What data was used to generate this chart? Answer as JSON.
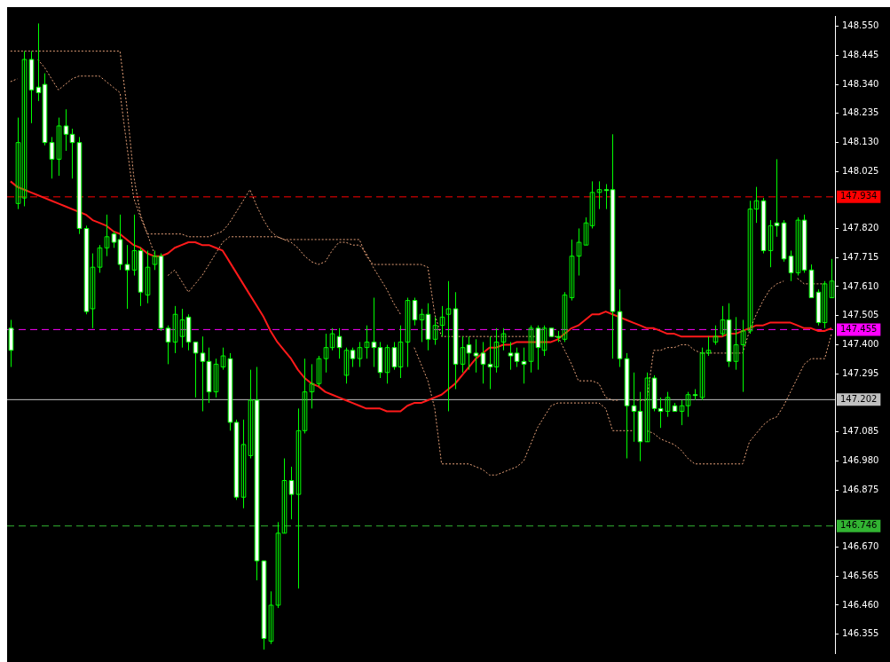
{
  "chart_data": {
    "type": "candlestick",
    "color": "#00ff00",
    "colors": [
      "#ffffff",
      "#00ff00",
      "#00ff00",
      "#ffffff",
      "#ffffff",
      "#ffffff",
      "#ffffff",
      "#00ff00",
      "#ffffff",
      "#ffffff",
      "#ffffff",
      "#ffffff",
      "#00ff00",
      "#00ff00",
      "#00ff00",
      "#ffffff",
      "#ffffff",
      "#ffffff",
      "#00ff00",
      "#ffffff",
      "#00ff00",
      "#00ff00",
      "#ffffff",
      "#ffffff",
      "#00ff00",
      "#00ff00",
      "#ffffff",
      "#ffffff",
      "#ffffff",
      "#ffffff",
      "#00ff00",
      "#00ff00",
      "#ffffff",
      "#ffffff",
      "#00ff00",
      "#00ff00",
      "#ffffff",
      "#ffffff",
      "#00ff00",
      "#00ff00",
      "#00ff00",
      "#ffffff",
      "#00ff00",
      "#00ff00",
      "#00ff00",
      "#00ff00",
      "#00ff00",
      "#00ff00",
      "#ffffff",
      "#00ff00",
      "#ffffff",
      "#00ff00",
      "#00ff00",
      "#ffffff",
      "#ffffff",
      "#00ff00",
      "#ffffff",
      "#00ff00",
      "#00ff00",
      "#ffffff",
      "#00ff00",
      "#ffffff",
      "#00ff00",
      "#00ff00",
      "#00ff00",
      "#ffffff",
      "#00ff00",
      "#ffffff",
      "#ffffff",
      "#ffffff",
      "#ffffff",
      "#00ff00",
      "#00ff00",
      "#ffffff",
      "#ffffff",
      "#ffffff",
      "#00ff00",
      "#ffffff",
      "#00ff00",
      "#ffffff",
      "#ffffff",
      "#00ff00",
      "#00ff00",
      "#00ff00",
      "#00ff00",
      "#00ff00",
      "#00ff00",
      "#ffffff",
      "#ffffff",
      "#ffffff",
      "#ffffff",
      "#ffffff",
      "#ffffff",
      "#00ff00",
      "#ffffff",
      "#ffffff",
      "#00ff00",
      "#ffffff",
      "#00ff00",
      "#00ff00",
      "#ffffff",
      "#00ff00",
      "#00ff00",
      "#00ff00",
      "#00ff00",
      "#ffffff",
      "#00ff00",
      "#00ff00",
      "#00ff00",
      "#00ff00",
      "#ffffff",
      "#00ff00",
      "#ffffff",
      "#ffffff",
      "#ffffff",
      "#00ff00",
      "#ffffff",
      "#ffffff",
      "#ffffff",
      "#00ff00",
      "#00ff00"
    ],
    "categories": [
      null,
      null,
      null,
      null,
      null,
      null,
      null,
      null,
      null,
      null,
      null,
      null,
      null,
      null,
      null,
      null,
      null,
      null,
      null,
      null,
      null,
      null,
      null,
      null,
      null,
      null,
      null,
      null,
      null,
      null,
      null,
      null,
      null,
      null,
      null,
      null,
      null,
      null,
      null,
      null,
      null,
      null,
      null,
      null,
      null,
      null,
      null,
      null,
      null,
      null,
      null,
      null,
      null,
      null,
      null,
      null,
      null,
      null,
      null,
      null,
      null,
      null,
      null,
      null,
      null,
      null,
      null,
      null,
      null,
      null,
      null,
      null,
      null,
      null,
      null,
      null,
      null,
      null,
      null,
      null,
      null,
      null,
      null,
      null,
      null,
      null,
      null,
      null,
      null,
      null,
      null,
      null,
      null,
      null,
      null,
      null,
      null,
      null,
      null,
      null,
      null,
      null,
      null,
      null,
      null,
      null,
      null,
      null,
      null,
      null,
      null,
      null,
      null,
      null,
      null,
      null,
      null,
      null,
      null,
      null,
      null
    ],
    "ohlc": [
      [
        147.46,
        147.49,
        147.32,
        147.38
      ],
      [
        147.91,
        148.22,
        147.89,
        148.13
      ],
      [
        147.93,
        148.46,
        147.9,
        148.43
      ],
      [
        148.43,
        148.46,
        148.2,
        148.32
      ],
      [
        148.33,
        148.56,
        148.28,
        148.31
      ],
      [
        148.34,
        148.38,
        148.12,
        148.13
      ],
      [
        148.13,
        148.15,
        148.0,
        148.07
      ],
      [
        148.07,
        148.22,
        148.01,
        148.19
      ],
      [
        148.19,
        148.25,
        148.1,
        148.16
      ],
      [
        148.16,
        148.18,
        148.0,
        148.13
      ],
      [
        148.13,
        148.15,
        147.8,
        147.82
      ],
      [
        147.82,
        147.83,
        147.51,
        147.52
      ],
      [
        147.53,
        147.73,
        147.46,
        147.68
      ],
      [
        147.68,
        147.76,
        147.66,
        147.75
      ],
      [
        147.75,
        147.87,
        147.72,
        147.79
      ],
      [
        147.8,
        147.81,
        147.75,
        147.77
      ],
      [
        147.78,
        147.87,
        147.67,
        147.69
      ],
      [
        147.69,
        147.76,
        147.53,
        147.67
      ],
      [
        147.67,
        147.87,
        147.65,
        147.74
      ],
      [
        147.74,
        147.75,
        147.54,
        147.59
      ],
      [
        147.58,
        147.74,
        147.55,
        147.68
      ],
      [
        147.69,
        147.74,
        147.67,
        147.72
      ],
      [
        147.72,
        147.73,
        147.45,
        147.46
      ],
      [
        147.46,
        147.47,
        147.33,
        147.41
      ],
      [
        147.41,
        147.54,
        147.37,
        147.51
      ],
      [
        147.43,
        147.53,
        147.39,
        147.49
      ],
      [
        147.5,
        147.51,
        147.38,
        147.41
      ],
      [
        147.41,
        147.41,
        147.21,
        147.37
      ],
      [
        147.37,
        147.43,
        147.16,
        147.34
      ],
      [
        147.34,
        147.39,
        147.19,
        147.23
      ],
      [
        147.23,
        147.35,
        147.21,
        147.33
      ],
      [
        147.32,
        147.39,
        147.31,
        147.36
      ],
      [
        147.35,
        147.37,
        147.09,
        147.12
      ],
      [
        147.12,
        147.13,
        146.84,
        146.85
      ],
      [
        146.85,
        147.13,
        146.81,
        147.04
      ],
      [
        147.0,
        147.31,
        146.99,
        147.2
      ],
      [
        147.2,
        147.32,
        146.55,
        146.62
      ],
      [
        146.62,
        146.62,
        146.3,
        146.34
      ],
      [
        146.33,
        146.51,
        146.32,
        146.46
      ],
      [
        146.46,
        146.76,
        146.45,
        146.72
      ],
      [
        146.72,
        146.99,
        146.72,
        146.91
      ],
      [
        146.91,
        146.96,
        146.77,
        146.86
      ],
      [
        146.86,
        147.17,
        146.52,
        147.09
      ],
      [
        147.09,
        147.35,
        147.08,
        147.23
      ],
      [
        147.23,
        147.33,
        147.17,
        147.26
      ],
      [
        147.26,
        147.36,
        147.25,
        147.35
      ],
      [
        147.35,
        147.44,
        147.3,
        147.39
      ],
      [
        147.39,
        147.46,
        147.38,
        147.44
      ],
      [
        147.43,
        147.46,
        147.35,
        147.39
      ],
      [
        147.29,
        147.39,
        147.26,
        147.38
      ],
      [
        147.38,
        147.39,
        147.32,
        147.35
      ],
      [
        147.35,
        147.41,
        147.32,
        147.39
      ],
      [
        147.39,
        147.47,
        147.35,
        147.41
      ],
      [
        147.41,
        147.57,
        147.32,
        147.39
      ],
      [
        147.39,
        147.41,
        147.28,
        147.3
      ],
      [
        147.3,
        147.4,
        147.26,
        147.39
      ],
      [
        147.39,
        147.41,
        147.31,
        147.32
      ],
      [
        147.32,
        147.47,
        147.28,
        147.41
      ],
      [
        147.41,
        147.57,
        147.32,
        147.56
      ],
      [
        147.56,
        147.57,
        147.47,
        147.49
      ],
      [
        147.49,
        147.53,
        147.41,
        147.51
      ],
      [
        147.51,
        147.55,
        147.38,
        147.42
      ],
      [
        147.42,
        147.5,
        147.4,
        147.47
      ],
      [
        147.47,
        147.54,
        147.43,
        147.5
      ],
      [
        147.51,
        147.63,
        147.16,
        147.53
      ],
      [
        147.53,
        147.59,
        147.24,
        147.33
      ],
      [
        147.33,
        147.43,
        147.3,
        147.39
      ],
      [
        147.4,
        147.43,
        147.31,
        147.37
      ],
      [
        147.37,
        147.42,
        147.3,
        147.36
      ],
      [
        147.37,
        147.41,
        147.26,
        147.33
      ],
      [
        147.33,
        147.43,
        147.24,
        147.32
      ],
      [
        147.32,
        147.46,
        147.3,
        147.41
      ],
      [
        147.41,
        147.46,
        147.38,
        147.44
      ],
      [
        147.37,
        147.41,
        147.31,
        147.36
      ],
      [
        147.37,
        147.39,
        147.32,
        147.34
      ],
      [
        147.34,
        147.39,
        147.26,
        147.33
      ],
      [
        147.34,
        147.47,
        147.3,
        147.46
      ],
      [
        147.46,
        147.47,
        147.31,
        147.39
      ],
      [
        147.38,
        147.47,
        147.36,
        147.46
      ],
      [
        147.46,
        147.46,
        147.43,
        147.43
      ],
      [
        147.43,
        147.45,
        147.41,
        147.43
      ],
      [
        147.42,
        147.59,
        147.41,
        147.58
      ],
      [
        147.57,
        147.78,
        147.56,
        147.72
      ],
      [
        147.72,
        147.82,
        147.65,
        147.77
      ],
      [
        147.76,
        147.86,
        147.76,
        147.84
      ],
      [
        147.83,
        147.99,
        147.82,
        147.95
      ],
      [
        147.95,
        147.99,
        147.89,
        147.96
      ],
      [
        147.96,
        147.98,
        147.89,
        147.96
      ],
      [
        147.96,
        148.16,
        147.35,
        147.52
      ],
      [
        147.52,
        147.6,
        147.32,
        147.35
      ],
      [
        147.35,
        147.37,
        146.99,
        147.18
      ],
      [
        147.18,
        147.3,
        147.05,
        147.16
      ],
      [
        147.16,
        147.23,
        146.98,
        147.05
      ],
      [
        147.05,
        147.3,
        147.05,
        147.28
      ],
      [
        147.28,
        147.29,
        147.16,
        147.17
      ],
      [
        147.17,
        147.21,
        147.1,
        147.16
      ],
      [
        147.16,
        147.23,
        147.14,
        147.21
      ],
      [
        147.18,
        147.19,
        147.16,
        147.16
      ],
      [
        147.16,
        147.2,
        147.11,
        147.18
      ],
      [
        147.18,
        147.23,
        147.14,
        147.22
      ],
      [
        147.22,
        147.24,
        147.2,
        147.22
      ],
      [
        147.21,
        147.39,
        147.2,
        147.37
      ],
      [
        147.37,
        147.43,
        147.36,
        147.38
      ],
      [
        147.41,
        147.47,
        147.4,
        147.43
      ],
      [
        147.44,
        147.54,
        147.43,
        147.49
      ],
      [
        147.49,
        147.55,
        147.32,
        147.34
      ],
      [
        147.34,
        147.5,
        147.31,
        147.4
      ],
      [
        147.4,
        147.49,
        147.23,
        147.45
      ],
      [
        147.45,
        147.92,
        147.44,
        147.89
      ],
      [
        147.89,
        147.97,
        147.84,
        147.92
      ],
      [
        147.92,
        147.93,
        147.73,
        147.74
      ],
      [
        147.74,
        147.85,
        147.68,
        147.83
      ],
      [
        147.84,
        148.07,
        147.79,
        147.83
      ],
      [
        147.84,
        147.85,
        147.7,
        147.71
      ],
      [
        147.72,
        147.74,
        147.63,
        147.66
      ],
      [
        147.66,
        147.86,
        147.65,
        147.85
      ],
      [
        147.85,
        147.87,
        147.66,
        147.67
      ],
      [
        147.67,
        147.69,
        147.57,
        147.57
      ],
      [
        147.59,
        147.6,
        147.47,
        147.48
      ],
      [
        147.48,
        147.63,
        147.46,
        147.62
      ],
      [
        147.57,
        147.71,
        147.57,
        147.63
      ]
    ],
    "series": [
      {
        "type": "line",
        "color": "#ff1a1a",
        "line_style": "solid",
        "values": [
          147.99,
          147.97,
          147.96,
          147.95,
          147.94,
          147.93,
          147.92,
          147.91,
          147.9,
          147.89,
          147.88,
          147.87,
          147.85,
          147.84,
          147.83,
          147.81,
          147.8,
          147.78,
          147.76,
          147.75,
          147.73,
          147.72,
          147.72,
          147.73,
          147.75,
          147.76,
          147.77,
          147.77,
          147.76,
          147.76,
          147.75,
          147.74,
          147.7,
          147.66,
          147.62,
          147.58,
          147.54,
          147.5,
          147.45,
          147.41,
          147.38,
          147.35,
          147.31,
          147.28,
          147.26,
          147.25,
          147.23,
          147.22,
          147.21,
          147.2,
          147.19,
          147.18,
          147.17,
          147.17,
          147.17,
          147.16,
          147.16,
          147.16,
          147.18,
          147.19,
          147.19,
          147.2,
          147.21,
          147.22,
          147.24,
          147.26,
          147.29,
          147.32,
          147.35,
          147.37,
          147.39,
          147.39,
          147.4,
          147.4,
          147.41,
          147.41,
          147.41,
          147.41,
          147.41,
          147.41,
          147.42,
          147.44,
          147.46,
          147.47,
          147.49,
          147.51,
          147.51,
          147.52,
          147.51,
          147.5,
          147.49,
          147.48,
          147.47,
          147.46,
          147.46,
          147.45,
          147.44,
          147.44,
          147.43,
          147.43,
          147.43,
          147.43,
          147.43,
          147.43,
          147.43,
          147.44,
          147.44,
          147.45,
          147.46,
          147.47,
          147.47,
          147.48,
          147.48,
          147.48,
          147.48,
          147.47,
          147.46,
          147.46,
          147.45,
          147.45,
          147.46
        ]
      },
      {
        "type": "line",
        "color": "#e8a27a",
        "line_style": "dotted",
        "values": [
          148.46,
          148.46,
          148.46,
          148.46,
          148.46,
          148.46,
          148.46,
          148.46,
          148.46,
          148.46,
          148.46,
          148.46,
          148.46,
          148.46,
          148.46,
          148.46,
          148.46,
          148.26,
          148.01,
          147.87,
          147.8,
          147.8,
          147.8,
          147.8,
          147.8,
          147.8,
          147.79,
          147.79,
          147.79,
          147.79,
          147.8,
          147.81,
          147.84,
          147.88,
          147.92,
          147.96,
          147.9,
          147.85,
          147.81,
          147.79,
          147.78,
          147.78,
          147.78,
          147.78,
          147.78,
          147.78,
          147.78,
          147.78,
          147.78,
          147.78,
          147.78,
          147.78,
          147.72,
          147.69,
          147.69,
          147.69,
          147.69,
          147.69,
          147.69,
          147.69,
          147.69,
          147.68,
          147.51,
          147.43,
          147.43,
          147.43,
          147.43,
          147.43,
          147.43,
          147.43,
          147.43,
          147.43,
          147.43,
          147.43,
          147.43,
          147.43,
          147.43,
          147.43,
          null,
          147.43,
          147.43,
          147.38,
          147.33,
          147.27,
          147.27,
          147.27,
          147.26,
          147.21,
          147.2,
          147.2,
          null,
          147.2,
          147.2,
          147.2,
          147.38,
          147.38,
          147.39,
          147.39,
          147.4,
          147.4,
          147.38,
          147.37,
          147.37,
          147.37,
          147.37,
          147.37,
          147.37,
          147.37,
          147.45,
          147.51,
          147.56,
          147.6,
          147.62,
          147.63,
          null,
          147.64,
          147.62,
          147.62,
          147.62,
          147.62,
          null
        ]
      },
      {
        "type": "line",
        "color": "#e8a27a",
        "line_style": "dotted",
        "values": [
          148.35,
          148.36,
          null,
          null,
          148.43,
          148.4,
          148.36,
          148.32,
          148.34,
          148.36,
          148.37,
          148.37,
          148.37,
          148.37,
          148.35,
          148.33,
          148.31,
          148.12,
          147.93,
          147.86,
          147.8,
          147.73,
          null,
          147.65,
          147.67,
          147.63,
          147.59,
          147.62,
          147.65,
          147.69,
          147.73,
          147.77,
          147.79,
          147.79,
          147.79,
          147.79,
          147.79,
          147.79,
          147.79,
          147.79,
          147.78,
          147.77,
          147.75,
          147.72,
          147.7,
          147.69,
          147.7,
          147.74,
          147.77,
          147.77,
          147.76,
          147.76,
          147.73,
          147.68,
          147.64,
          147.6,
          147.55,
          147.51,
          null,
          147.39,
          147.33,
          147.27,
          147.17,
          146.97,
          146.97,
          146.97,
          146.97,
          146.97,
          146.96,
          146.95,
          146.93,
          146.93,
          146.94,
          146.95,
          146.96,
          146.98,
          147.04,
          147.1,
          147.14,
          147.18,
          147.19,
          147.19,
          147.19,
          147.19,
          147.19,
          147.19,
          147.19,
          147.17,
          147.09,
          147.09,
          147.09,
          147.09,
          null,
          147.09,
          147.08,
          147.06,
          147.05,
          147.04,
          147.02,
          146.99,
          146.97,
          146.97,
          146.97,
          146.97,
          146.97,
          146.97,
          146.97,
          146.97,
          147.05,
          147.08,
          147.11,
          147.13,
          147.14,
          147.18,
          147.23,
          147.28,
          147.33,
          147.35,
          147.35,
          147.35,
          147.44
        ]
      }
    ],
    "ref_lines": [
      {
        "axis": "y",
        "value": 147.934,
        "label": "147.934",
        "color": "#ff0000",
        "line_style": "dashed"
      },
      {
        "axis": "y",
        "value": 147.455,
        "label": "147.455",
        "color": "#ff00ff",
        "line_style": "dashed"
      },
      {
        "axis": "y",
        "value": 147.202,
        "label": "147.202",
        "color": "#c0c0c0",
        "line_style": "solid"
      },
      {
        "axis": "y",
        "value": 146.746,
        "label": "146.746",
        "color": "#32b432",
        "line_style": "dashed"
      }
    ],
    "ylim": [
      146.287,
      148.587
    ],
    "yticks": [
      {
        "value": 148.55,
        "label": "148.550"
      },
      {
        "value": 148.445,
        "label": "148.445"
      },
      {
        "value": 148.34,
        "label": "148.340"
      },
      {
        "value": 148.235,
        "label": "148.235"
      },
      {
        "value": 148.13,
        "label": "148.130"
      },
      {
        "value": 148.025,
        "label": "148.025"
      },
      {
        "value": 147.82,
        "label": "147.820"
      },
      {
        "value": 147.715,
        "label": "147.715"
      },
      {
        "value": 147.61,
        "label": "147.610"
      },
      {
        "value": 147.505,
        "label": "147.505"
      },
      {
        "value": 147.4,
        "label": "147.400"
      },
      {
        "value": 147.295,
        "label": "147.295"
      },
      {
        "value": 147.085,
        "label": "147.085"
      },
      {
        "value": 146.98,
        "label": "146.980"
      },
      {
        "value": 146.875,
        "label": "146.875"
      },
      {
        "value": 146.67,
        "label": "146.670"
      },
      {
        "value": 146.565,
        "label": "146.565"
      },
      {
        "value": 146.46,
        "label": "146.460"
      },
      {
        "value": 146.355,
        "label": "146.355"
      }
    ],
    "tick_labels": "y",
    "legend": false
  }
}
